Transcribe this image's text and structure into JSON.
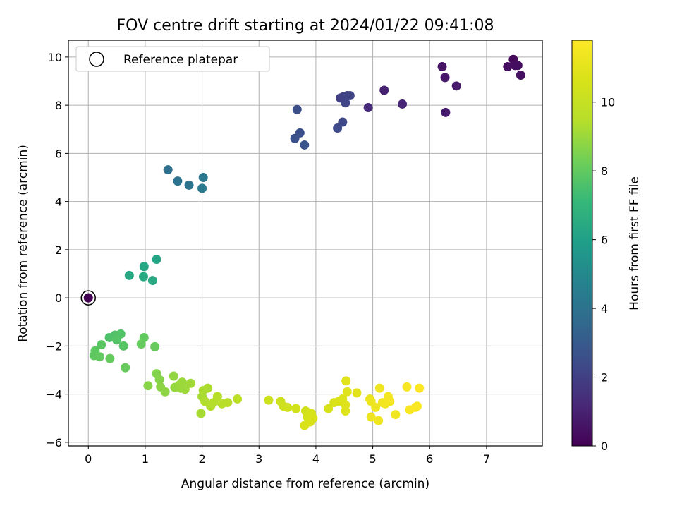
{
  "chart_data": {
    "type": "scatter",
    "title": "FOV centre drift starting at 2024/01/22 09:41:08",
    "xlabel": "Angular distance from reference (arcmin)",
    "ylabel": "Rotation from reference (arcmin)",
    "xlim": [
      -0.35,
      7.98
    ],
    "ylim": [
      -6.15,
      10.7
    ],
    "xticks": [
      0,
      1,
      2,
      3,
      4,
      5,
      6,
      7
    ],
    "xtick_labels": [
      "0",
      "1",
      "2",
      "3",
      "4",
      "5",
      "6",
      "7"
    ],
    "yticks": [
      -6,
      -4,
      -2,
      0,
      2,
      4,
      6,
      8,
      10
    ],
    "ytick_labels": [
      "−6",
      "−4",
      "−2",
      "0",
      "2",
      "4",
      "6",
      "8",
      "10"
    ],
    "grid": true,
    "legend": {
      "placement": "top-left",
      "entries": [
        "Reference platepar"
      ]
    },
    "colorbar": {
      "label": "Hours from first FF file",
      "range": [
        0,
        11.8
      ],
      "ticks": [
        0,
        2,
        4,
        6,
        8,
        10
      ],
      "tick_labels": [
        "0",
        "2",
        "4",
        "6",
        "8",
        "10"
      ],
      "colormap": "viridis"
    },
    "reference_point": {
      "x": 0,
      "y": 0
    },
    "points": [
      {
        "x": 0,
        "y": 0,
        "h": 0
      },
      {
        "x": 7.47,
        "y": 9.9,
        "h": 0.25
      },
      {
        "x": 7.5,
        "y": 9.65,
        "h": 0.3
      },
      {
        "x": 7.55,
        "y": 9.65,
        "h": 0.35
      },
      {
        "x": 7.37,
        "y": 9.6,
        "h": 0.4
      },
      {
        "x": 7.6,
        "y": 9.25,
        "h": 0.45
      },
      {
        "x": 6.22,
        "y": 9.6,
        "h": 0.6
      },
      {
        "x": 6.27,
        "y": 9.15,
        "h": 0.65
      },
      {
        "x": 6.47,
        "y": 8.8,
        "h": 0.75
      },
      {
        "x": 6.28,
        "y": 7.7,
        "h": 0.8
      },
      {
        "x": 5.2,
        "y": 8.62,
        "h": 1.0
      },
      {
        "x": 5.52,
        "y": 8.05,
        "h": 1.1
      },
      {
        "x": 4.92,
        "y": 7.9,
        "h": 1.3
      },
      {
        "x": 4.43,
        "y": 8.3,
        "h": 2.0
      },
      {
        "x": 4.48,
        "y": 8.35,
        "h": 2.05
      },
      {
        "x": 4.55,
        "y": 8.4,
        "h": 2.1
      },
      {
        "x": 4.6,
        "y": 8.4,
        "h": 2.15
      },
      {
        "x": 4.52,
        "y": 8.1,
        "h": 2.2
      },
      {
        "x": 4.47,
        "y": 7.3,
        "h": 2.3
      },
      {
        "x": 4.38,
        "y": 7.05,
        "h": 2.35
      },
      {
        "x": 3.67,
        "y": 7.82,
        "h": 2.5
      },
      {
        "x": 3.72,
        "y": 6.85,
        "h": 2.6
      },
      {
        "x": 3.63,
        "y": 6.62,
        "h": 2.65
      },
      {
        "x": 3.8,
        "y": 6.35,
        "h": 2.7
      },
      {
        "x": 1.4,
        "y": 5.32,
        "h": 3.9
      },
      {
        "x": 1.57,
        "y": 4.85,
        "h": 4.0
      },
      {
        "x": 1.77,
        "y": 4.68,
        "h": 4.1
      },
      {
        "x": 2.02,
        "y": 5.0,
        "h": 4.2
      },
      {
        "x": 2.0,
        "y": 4.55,
        "h": 4.3
      },
      {
        "x": 1.2,
        "y": 1.6,
        "h": 6.2
      },
      {
        "x": 0.98,
        "y": 1.3,
        "h": 6.3
      },
      {
        "x": 0.72,
        "y": 0.93,
        "h": 6.35
      },
      {
        "x": 0.97,
        "y": 0.88,
        "h": 6.4
      },
      {
        "x": 1.13,
        "y": 0.72,
        "h": 6.45
      },
      {
        "x": 0.37,
        "y": -1.65,
        "h": 7.6
      },
      {
        "x": 0.47,
        "y": -1.55,
        "h": 7.65
      },
      {
        "x": 0.57,
        "y": -1.5,
        "h": 7.7
      },
      {
        "x": 0.5,
        "y": -1.75,
        "h": 7.75
      },
      {
        "x": 0.62,
        "y": -2.0,
        "h": 7.8
      },
      {
        "x": 0.23,
        "y": -1.95,
        "h": 7.85
      },
      {
        "x": 0.12,
        "y": -2.2,
        "h": 7.9
      },
      {
        "x": 0.1,
        "y": -2.4,
        "h": 7.95
      },
      {
        "x": 0.2,
        "y": -2.45,
        "h": 8.0
      },
      {
        "x": 0.38,
        "y": -2.52,
        "h": 8.05
      },
      {
        "x": 0.65,
        "y": -2.9,
        "h": 8.1
      },
      {
        "x": 0.98,
        "y": -1.65,
        "h": 8.0
      },
      {
        "x": 0.93,
        "y": -1.92,
        "h": 8.05
      },
      {
        "x": 1.17,
        "y": -2.03,
        "h": 8.1
      },
      {
        "x": 1.2,
        "y": -3.15,
        "h": 8.6
      },
      {
        "x": 1.25,
        "y": -3.4,
        "h": 8.65
      },
      {
        "x": 1.05,
        "y": -3.65,
        "h": 8.7
      },
      {
        "x": 1.27,
        "y": -3.7,
        "h": 8.75
      },
      {
        "x": 1.35,
        "y": -3.9,
        "h": 8.8
      },
      {
        "x": 1.5,
        "y": -3.25,
        "h": 8.85
      },
      {
        "x": 1.52,
        "y": -3.72,
        "h": 8.9
      },
      {
        "x": 1.6,
        "y": -3.62,
        "h": 8.95
      },
      {
        "x": 1.65,
        "y": -3.5,
        "h": 9.0
      },
      {
        "x": 1.7,
        "y": -3.8,
        "h": 9.05
      },
      {
        "x": 1.8,
        "y": -3.55,
        "h": 9.1
      },
      {
        "x": 1.62,
        "y": -3.75,
        "h": 9.0
      },
      {
        "x": 2.0,
        "y": -4.1,
        "h": 9.2
      },
      {
        "x": 2.02,
        "y": -3.85,
        "h": 9.25
      },
      {
        "x": 2.1,
        "y": -3.75,
        "h": 9.3
      },
      {
        "x": 2.05,
        "y": -4.3,
        "h": 9.35
      },
      {
        "x": 2.15,
        "y": -4.5,
        "h": 9.4
      },
      {
        "x": 2.2,
        "y": -4.35,
        "h": 9.45
      },
      {
        "x": 2.27,
        "y": -4.1,
        "h": 9.5
      },
      {
        "x": 2.35,
        "y": -4.4,
        "h": 9.55
      },
      {
        "x": 2.45,
        "y": -4.35,
        "h": 9.6
      },
      {
        "x": 2.62,
        "y": -4.2,
        "h": 9.65
      },
      {
        "x": 1.98,
        "y": -4.8,
        "h": 9.2
      },
      {
        "x": 3.17,
        "y": -4.25,
        "h": 10.2
      },
      {
        "x": 3.38,
        "y": -4.3,
        "h": 10.25
      },
      {
        "x": 3.43,
        "y": -4.5,
        "h": 10.3
      },
      {
        "x": 3.5,
        "y": -4.55,
        "h": 10.35
      },
      {
        "x": 3.65,
        "y": -4.6,
        "h": 10.4
      },
      {
        "x": 3.82,
        "y": -4.7,
        "h": 10.45
      },
      {
        "x": 3.85,
        "y": -4.95,
        "h": 10.5
      },
      {
        "x": 3.92,
        "y": -4.8,
        "h": 10.55
      },
      {
        "x": 3.95,
        "y": -5.0,
        "h": 10.6
      },
      {
        "x": 3.8,
        "y": -5.3,
        "h": 10.65
      },
      {
        "x": 3.9,
        "y": -5.15,
        "h": 10.65
      },
      {
        "x": 4.22,
        "y": -4.6,
        "h": 10.6
      },
      {
        "x": 4.32,
        "y": -4.35,
        "h": 10.65
      },
      {
        "x": 4.4,
        "y": -4.3,
        "h": 10.7
      },
      {
        "x": 4.47,
        "y": -4.2,
        "h": 10.75
      },
      {
        "x": 4.52,
        "y": -4.45,
        "h": 10.8
      },
      {
        "x": 4.52,
        "y": -4.7,
        "h": 10.8
      },
      {
        "x": 4.55,
        "y": -3.9,
        "h": 10.85
      },
      {
        "x": 4.53,
        "y": -3.45,
        "h": 10.9
      },
      {
        "x": 4.72,
        "y": -3.95,
        "h": 10.95
      },
      {
        "x": 4.95,
        "y": -4.2,
        "h": 11.2
      },
      {
        "x": 4.97,
        "y": -4.3,
        "h": 11.25
      },
      {
        "x": 5.05,
        "y": -4.55,
        "h": 11.3
      },
      {
        "x": 5.12,
        "y": -3.75,
        "h": 11.35
      },
      {
        "x": 5.17,
        "y": -4.35,
        "h": 11.4
      },
      {
        "x": 5.22,
        "y": -4.4,
        "h": 11.45
      },
      {
        "x": 5.27,
        "y": -4.1,
        "h": 11.5
      },
      {
        "x": 5.3,
        "y": -4.3,
        "h": 11.55
      },
      {
        "x": 4.97,
        "y": -4.95,
        "h": 11.3
      },
      {
        "x": 5.1,
        "y": -5.1,
        "h": 11.35
      },
      {
        "x": 5.4,
        "y": -4.85,
        "h": 11.4
      },
      {
        "x": 5.6,
        "y": -3.7,
        "h": 11.6
      },
      {
        "x": 5.65,
        "y": -4.65,
        "h": 11.65
      },
      {
        "x": 5.75,
        "y": -4.55,
        "h": 11.7
      },
      {
        "x": 5.78,
        "y": -4.5,
        "h": 11.7
      },
      {
        "x": 5.82,
        "y": -3.75,
        "h": 11.8
      }
    ]
  }
}
